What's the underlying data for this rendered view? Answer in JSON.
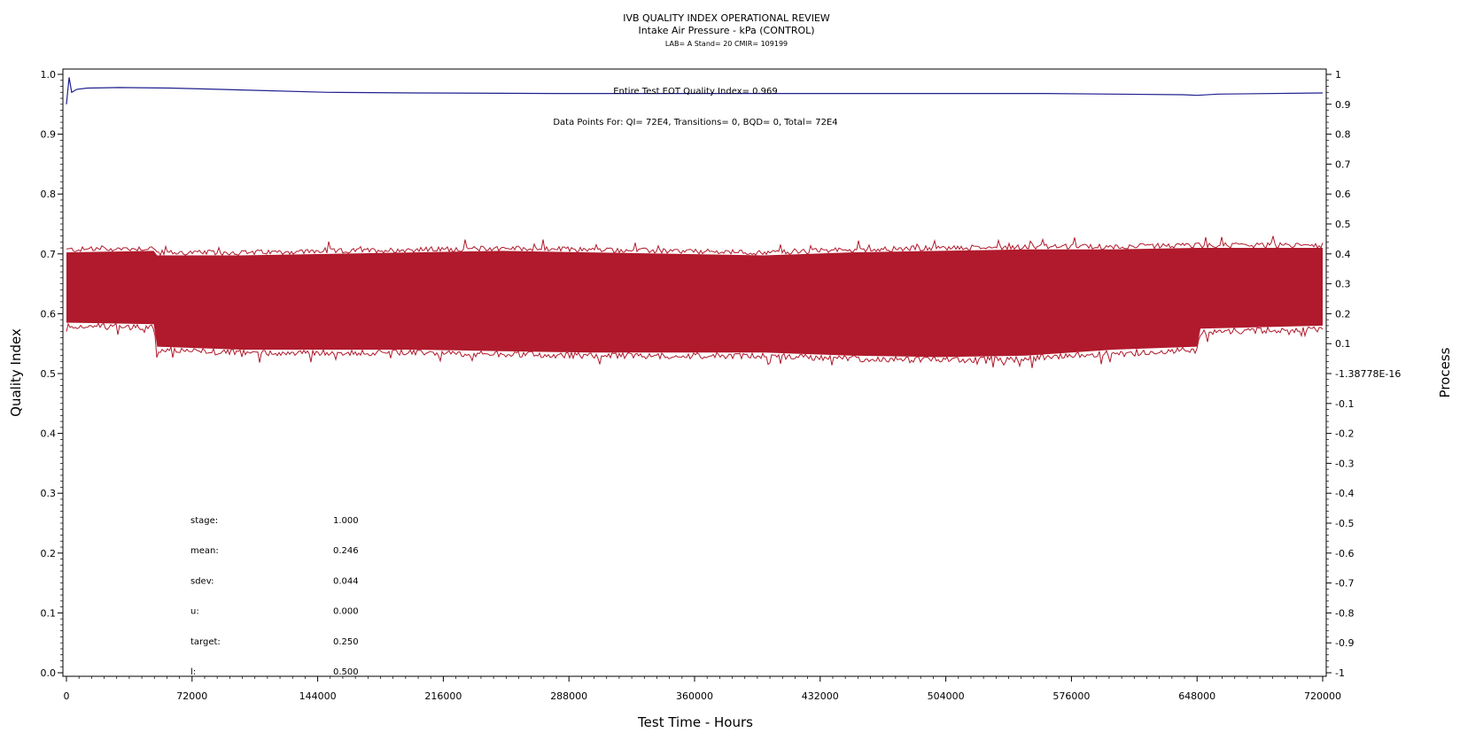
{
  "header": {
    "title": "IVB QUALITY INDEX OPERATIONAL REVIEW",
    "subtitle": "Intake Air Pressure - kPa (CONTROL)",
    "info": "LAB= A Stand= 20 CMIR= 109199"
  },
  "annotations": {
    "eot": "Entire Test EOT Quality Index=   0.969",
    "data_points": "Data Points For: QI=  72E4, Transitions=     0, BQD=     0, Total=  72E4"
  },
  "stats": [
    {
      "label": "stage:",
      "value": "1.000"
    },
    {
      "label": "mean:",
      "value": "0.246"
    },
    {
      "label": "sdev:",
      "value": "0.044"
    },
    {
      "label": "u:",
      "value": "0.000"
    },
    {
      "label": "target:",
      "value": "0.250"
    },
    {
      "label": "l:",
      "value": "0.500"
    }
  ],
  "chart_data": {
    "type": "line",
    "xlabel": "Test Time - Hours",
    "ylabel": "Quality Index",
    "y2label": "Process",
    "xlim": [
      0,
      720000
    ],
    "ylim": [
      0,
      1
    ],
    "y2lim": [
      -1,
      1
    ],
    "x_ticks": [
      "0",
      "72000",
      "144000",
      "216000",
      "288000",
      "360000",
      "432000",
      "504000",
      "576000",
      "648000",
      "720000"
    ],
    "y_ticks": [
      "0.0",
      "0.1",
      "0.2",
      "0.3",
      "0.4",
      "0.5",
      "0.6",
      "0.7",
      "0.8",
      "0.9",
      "1.0"
    ],
    "y2_ticks": [
      "-1",
      "-0.9",
      "-0.8",
      "-0.7",
      "-0.6",
      "-0.5",
      "-0.4",
      "-0.3",
      "-0.2",
      "-0.1",
      "-1.38778E-16",
      "0.1",
      "0.2",
      "0.3",
      "0.4",
      "0.5",
      "0.6",
      "0.7",
      "0.8",
      "0.9",
      "1"
    ],
    "series": [
      {
        "role": "quality-index",
        "axis": "left",
        "color": "#1f1f8f",
        "x": [
          0,
          1500,
          3000,
          6000,
          12000,
          30000,
          60000,
          100000,
          150000,
          200000,
          280000,
          400000,
          500000,
          560000,
          640000,
          648000,
          660000,
          720000
        ],
        "y": [
          0.95,
          0.995,
          0.97,
          0.975,
          0.977,
          0.978,
          0.977,
          0.974,
          0.97,
          0.969,
          0.968,
          0.968,
          0.968,
          0.968,
          0.966,
          0.965,
          0.967,
          0.969
        ]
      },
      {
        "role": "process",
        "axis": "right",
        "color": "#b01a2c",
        "style": "band",
        "x": [
          0,
          50000,
          52000,
          100000,
          200000,
          250000,
          300000,
          400000,
          450000,
          500000,
          550000,
          600000,
          648000,
          650000,
          720000
        ],
        "upper": [
          0.405,
          0.41,
          0.395,
          0.395,
          0.405,
          0.41,
          0.405,
          0.395,
          0.405,
          0.41,
          0.415,
          0.415,
          0.42,
          0.42,
          0.42
        ],
        "lower": [
          0.17,
          0.165,
          0.09,
          0.08,
          0.08,
          0.075,
          0.07,
          0.07,
          0.06,
          0.055,
          0.06,
          0.08,
          0.09,
          0.15,
          0.16
        ]
      }
    ]
  }
}
